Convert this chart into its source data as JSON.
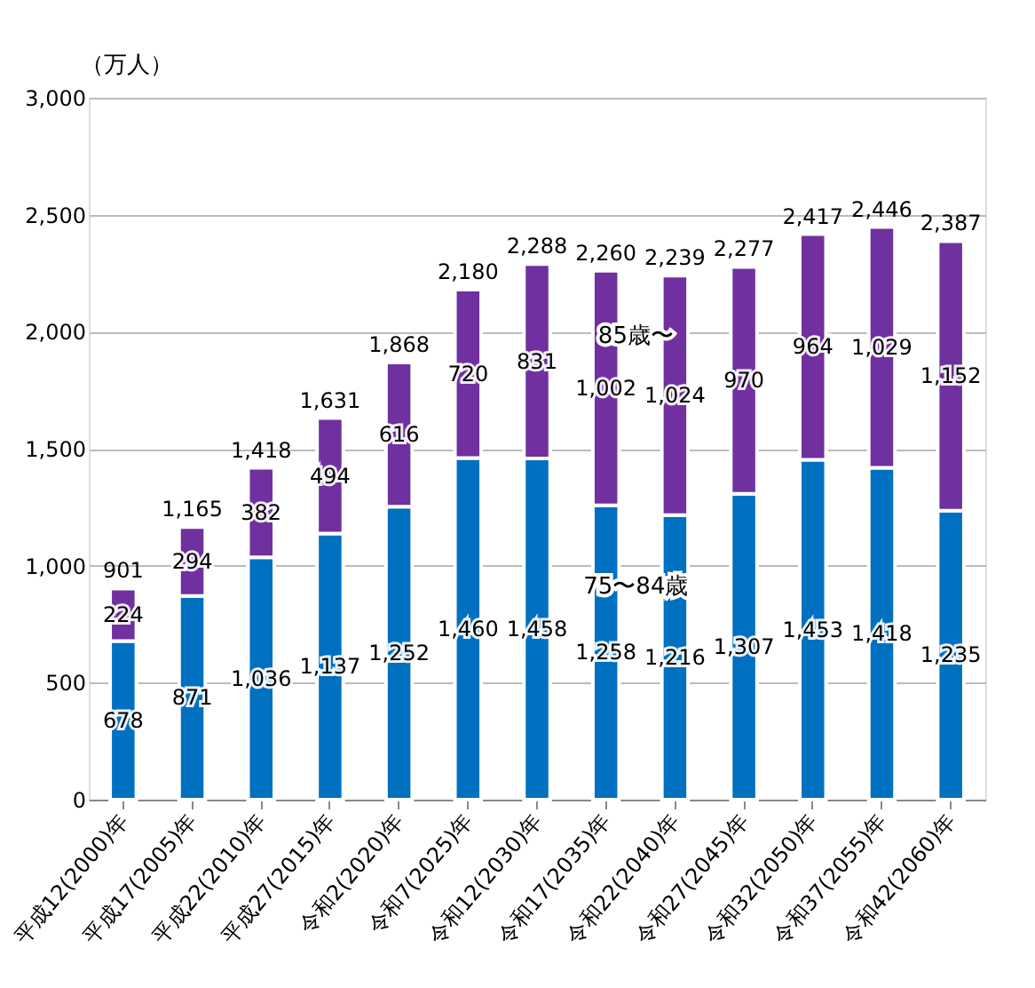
{
  "chart_data": {
    "type": "bar",
    "stacked": true,
    "ylabel": "（万人）",
    "categories": [
      "平成12(2000)年",
      "平成17(2005)年",
      "平成22(2010)年",
      "平成27(2015)年",
      "令和2(2020)年",
      "令和7(2025)年",
      "令和12(2030)年",
      "令和17(2035)年",
      "令和22(2040)年",
      "令和27(2045)年",
      "令和32(2050)年",
      "令和37(2055)年",
      "令和42(2060)年"
    ],
    "series": [
      {
        "name": "75〜84歳",
        "color": "#0070c0",
        "values": [
          678,
          871,
          1036,
          1137,
          1252,
          1460,
          1458,
          1258,
          1216,
          1307,
          1453,
          1418,
          1235
        ],
        "value_labels": [
          "678",
          "871",
          "1,036",
          "1,137",
          "1,252",
          "1,460",
          "1,458",
          "1,258",
          "1,216",
          "1,307",
          "1,453",
          "1,418",
          "1,235"
        ]
      },
      {
        "name": "85歳〜",
        "color": "#7030a0",
        "values": [
          224,
          294,
          382,
          494,
          616,
          720,
          831,
          1002,
          1024,
          970,
          964,
          1029,
          1152
        ],
        "value_labels": [
          "224",
          "294",
          "382",
          "494",
          "616",
          "720",
          "831",
          "1,002",
          "1,024",
          "970",
          "964",
          "1,029",
          "1,152"
        ]
      }
    ],
    "totals": [
      "901",
      "1,165",
      "1,418",
      "1,631",
      "1,868",
      "2,180",
      "2,288",
      "2,260",
      "2,239",
      "2,277",
      "2,417",
      "2,446",
      "2,387"
    ],
    "ylim": [
      0,
      3000
    ],
    "yticks": [
      0,
      {
        "value": 500,
        "label": "500"
      },
      {
        "value": 1000,
        "label": "1,000"
      },
      {
        "value": 1500,
        "label": "1,500"
      },
      {
        "value": 2000,
        "label": "2,000"
      },
      {
        "value": 2500,
        "label": "2,500"
      },
      {
        "value": 3000,
        "label": "3,000"
      }
    ],
    "grid": "y",
    "legend": false
  }
}
